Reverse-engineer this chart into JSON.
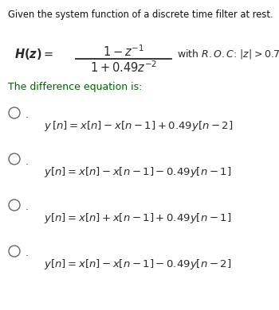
{
  "bg_color": "#ffffff",
  "fig_width": 3.5,
  "fig_height": 3.9,
  "dpi": 100,
  "header_text": "Given the system function of a discrete time filter at rest.",
  "diff_eq_label": "The difference equation is:",
  "diff_eq_color": "#006400",
  "text_color": "#222222",
  "header_color": "#111111",
  "eq_color": "#2a2a2a",
  "roc_text": "with  R. O. C:  |z| > 0.7",
  "equations": [
    "y [n] = x[n] − x[n − 1] + 0.49y[n − 2]",
    "y[n] = x[n] − x[n − 1] − 0.49y[n − 1]",
    "y[n] = x[n] + x[n − 1] + 0.49y[n − 1]",
    "y[n] = x[n] − x[n − 1] − 0.49y[n − 2]"
  ]
}
